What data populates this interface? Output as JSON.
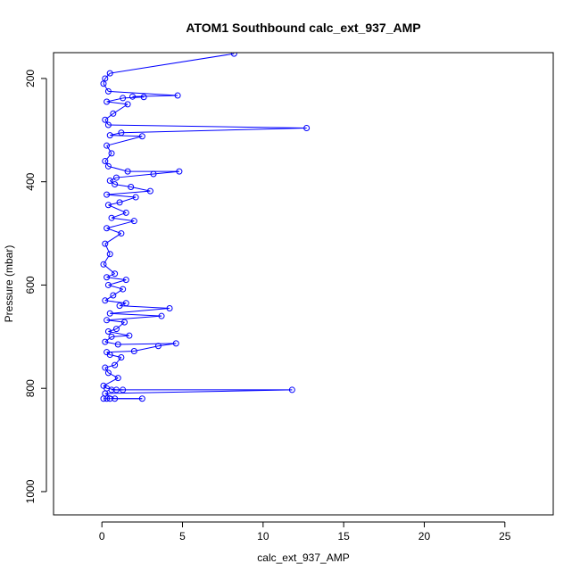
{
  "chart_data": {
    "type": "scatter",
    "title": "ATOM1 Southbound calc_ext_937_AMP",
    "xlabel": "calc_ext_937_AMP",
    "ylabel": "Pressure (mbar)",
    "xlim": [
      -3,
      28
    ],
    "ylim": [
      1045,
      150
    ],
    "y_reversed": true,
    "x_ticks": [
      0,
      5,
      10,
      15,
      20,
      25
    ],
    "y_ticks": [
      200,
      400,
      600,
      800,
      1000
    ],
    "grid": false,
    "legend": "none",
    "series": [
      {
        "color": "#0000ff",
        "marker": "open-circle",
        "connect": true,
        "points": [
          [
            0.1,
            820
          ],
          [
            0.3,
            820
          ],
          [
            0.5,
            820
          ],
          [
            2.5,
            820
          ],
          [
            0.8,
            820
          ],
          [
            0.2,
            810
          ],
          [
            11.8,
            803
          ],
          [
            0.6,
            803
          ],
          [
            1.3,
            803
          ],
          [
            0.9,
            803
          ],
          [
            0.3,
            800
          ],
          [
            0.1,
            795
          ],
          [
            1.0,
            780
          ],
          [
            0.4,
            770
          ],
          [
            0.2,
            760
          ],
          [
            0.8,
            755
          ],
          [
            1.2,
            740
          ],
          [
            0.5,
            735
          ],
          [
            0.3,
            730
          ],
          [
            2.0,
            728
          ],
          [
            3.5,
            718
          ],
          [
            4.6,
            713
          ],
          [
            1.0,
            715
          ],
          [
            0.2,
            710
          ],
          [
            0.6,
            700
          ],
          [
            1.7,
            698
          ],
          [
            0.4,
            690
          ],
          [
            0.9,
            685
          ],
          [
            1.4,
            672
          ],
          [
            0.3,
            668
          ],
          [
            3.7,
            660
          ],
          [
            0.5,
            655
          ],
          [
            4.2,
            645
          ],
          [
            1.1,
            640
          ],
          [
            1.5,
            635
          ],
          [
            0.2,
            630
          ],
          [
            0.7,
            620
          ],
          [
            1.3,
            608
          ],
          [
            0.4,
            600
          ],
          [
            1.5,
            590
          ],
          [
            0.3,
            585
          ],
          [
            0.8,
            578
          ],
          [
            0.1,
            560
          ],
          [
            0.5,
            540
          ],
          [
            0.2,
            520
          ],
          [
            1.2,
            500
          ],
          [
            0.3,
            490
          ],
          [
            2.0,
            476
          ],
          [
            0.6,
            470
          ],
          [
            1.5,
            460
          ],
          [
            0.4,
            445
          ],
          [
            1.1,
            440
          ],
          [
            2.1,
            430
          ],
          [
            0.3,
            425
          ],
          [
            3.0,
            418
          ],
          [
            1.8,
            410
          ],
          [
            0.8,
            405
          ],
          [
            0.5,
            398
          ],
          [
            0.9,
            392
          ],
          [
            3.2,
            385
          ],
          [
            4.8,
            380
          ],
          [
            1.6,
            380
          ],
          [
            0.4,
            370
          ],
          [
            0.2,
            360
          ],
          [
            0.6,
            345
          ],
          [
            0.3,
            330
          ],
          [
            2.5,
            312
          ],
          [
            0.5,
            310
          ],
          [
            1.2,
            305
          ],
          [
            12.7,
            296
          ],
          [
            0.4,
            290
          ],
          [
            0.2,
            280
          ],
          [
            0.7,
            268
          ],
          [
            1.6,
            250
          ],
          [
            0.3,
            245
          ],
          [
            1.3,
            238
          ],
          [
            2.6,
            236
          ],
          [
            1.9,
            235
          ],
          [
            4.7,
            233
          ],
          [
            0.4,
            225
          ],
          [
            0.1,
            210
          ],
          [
            0.2,
            200
          ],
          [
            0.5,
            190
          ],
          [
            8.2,
            152
          ]
        ]
      }
    ]
  }
}
